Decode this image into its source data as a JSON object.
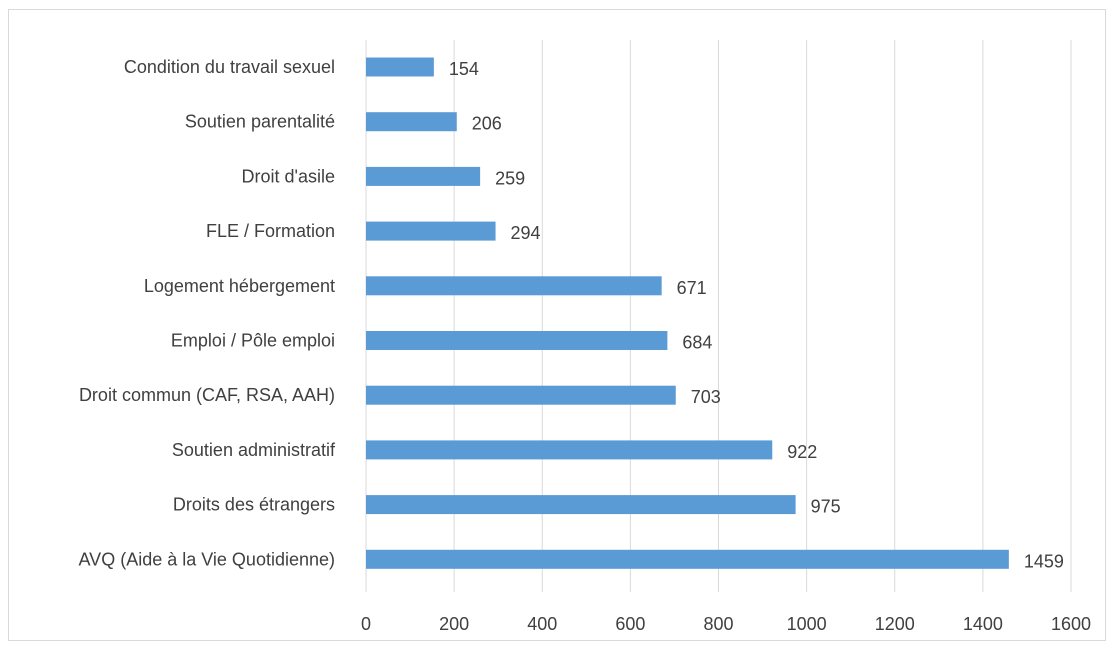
{
  "chart_data": {
    "type": "bar",
    "orientation": "horizontal",
    "categories": [
      "Condition du travail sexuel",
      "Soutien parentalité",
      "Droit d'asile",
      "FLE / Formation",
      "Logement hébergement",
      "Emploi / Pôle emploi",
      "Droit commun (CAF, RSA, AAH)",
      "Soutien administratif",
      "Droits des étrangers",
      "AVQ (Aide à la Vie Quotidienne)"
    ],
    "values": [
      154,
      206,
      259,
      294,
      671,
      684,
      703,
      922,
      975,
      1459
    ],
    "xlim": [
      0,
      1600
    ],
    "xticks": [
      0,
      200,
      400,
      600,
      800,
      1000,
      1200,
      1400,
      1600
    ],
    "grid": true,
    "data_labels": true,
    "bar_color": "#5b9bd5",
    "grid_color": "#d9d9d9",
    "text_color": "#404040"
  }
}
